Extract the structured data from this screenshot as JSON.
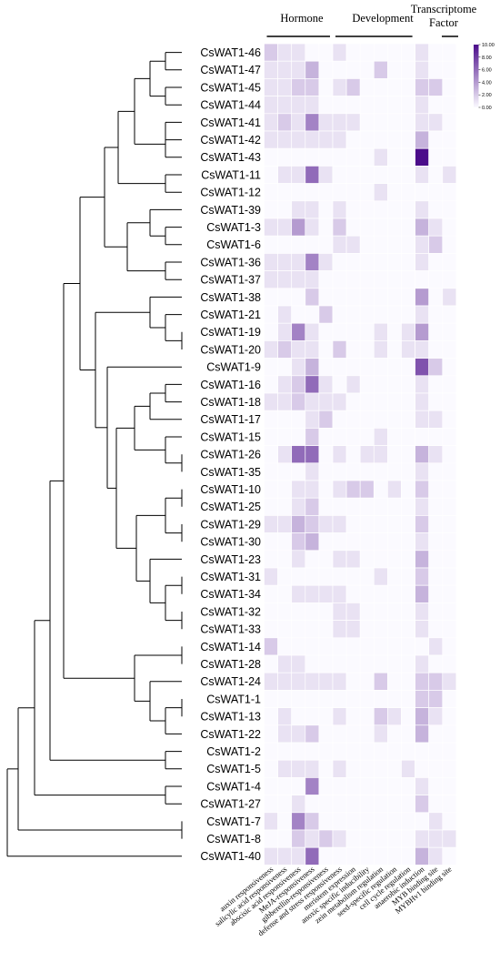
{
  "chart_data": {
    "type": "heatmap",
    "column_groups": [
      {
        "label": "Hormone",
        "columns": [
          1,
          2,
          3,
          4,
          5
        ]
      },
      {
        "label": "Development",
        "columns": [
          6,
          7,
          8,
          9,
          10,
          11
        ]
      },
      {
        "label_lines": [
          "Transcriptome",
          "Factor"
        ],
        "columns": [
          12,
          13
        ]
      }
    ],
    "columns": [
      "auxin responsiveness",
      "salicylic acid responsiveness",
      "abscisic acid responsiveness",
      "MeJA-responsiveness",
      "gibberellin-responsiveness",
      "defense and stress responsiveness",
      "meristem expression",
      "anoxic specific inducibility",
      "zein metabolism regulation",
      "seed-specific regulation",
      "cell cycle regulation",
      "anaerobic induction",
      "MYB binding site",
      "MYBHv1 binding site"
    ],
    "rows": [
      "CsWAT1-46",
      "CsWAT1-47",
      "CsWAT1-45",
      "CsWAT1-44",
      "CsWAT1-41",
      "CsWAT1-42",
      "CsWAT1-43",
      "CsWAT1-11",
      "CsWAT1-12",
      "CsWAT1-39",
      "CsWAT1-3",
      "CsWAT1-6",
      "CsWAT1-36",
      "CsWAT1-37",
      "CsWAT1-38",
      "CsWAT1-21",
      "CsWAT1-19",
      "CsWAT1-20",
      "CsWAT1-9",
      "CsWAT1-16",
      "CsWAT1-18",
      "CsWAT1-17",
      "CsWAT1-15",
      "CsWAT1-26",
      "CsWAT1-35",
      "CsWAT1-10",
      "CsWAT1-25",
      "CsWAT1-29",
      "CsWAT1-30",
      "CsWAT1-23",
      "CsWAT1-31",
      "CsWAT1-34",
      "CsWAT1-32",
      "CsWAT1-33",
      "CsWAT1-14",
      "CsWAT1-28",
      "CsWAT1-24",
      "CsWAT1-1",
      "CsWAT1-13",
      "CsWAT1-22",
      "CsWAT1-2",
      "CsWAT1-5",
      "CsWAT1-4",
      "CsWAT1-27",
      "CsWAT1-7",
      "CsWAT1-8",
      "CsWAT1-40"
    ],
    "values": [
      [
        2,
        1,
        1,
        0,
        0,
        1,
        0,
        0,
        0,
        0,
        0,
        1,
        0,
        0
      ],
      [
        1,
        1,
        1,
        3,
        0,
        0,
        0,
        0,
        2,
        0,
        0,
        1,
        0,
        0
      ],
      [
        1,
        1,
        2,
        2,
        0,
        1,
        2,
        0,
        0,
        0,
        0,
        2,
        2,
        0
      ],
      [
        1,
        1,
        1,
        1,
        0,
        0,
        0,
        0,
        0,
        0,
        0,
        1,
        0,
        0
      ],
      [
        1,
        2,
        1,
        5,
        1,
        1,
        1,
        0,
        0,
        0,
        0,
        1,
        1,
        0
      ],
      [
        1,
        1,
        1,
        1,
        1,
        1,
        0,
        0,
        0,
        0,
        0,
        3,
        0,
        0
      ],
      [
        0,
        0,
        0,
        0,
        0,
        0,
        0,
        0,
        1,
        0,
        0,
        10,
        0,
        0
      ],
      [
        0,
        1,
        1,
        6,
        1,
        0,
        0,
        0,
        0,
        0,
        0,
        1,
        0,
        1
      ],
      [
        0,
        0,
        0,
        0,
        0,
        0,
        0,
        0,
        1,
        0,
        0,
        0,
        0,
        0
      ],
      [
        0,
        0,
        1,
        1,
        0,
        1,
        0,
        0,
        0,
        0,
        0,
        1,
        0,
        0
      ],
      [
        1,
        1,
        4,
        1,
        0,
        2,
        0,
        0,
        0,
        0,
        0,
        3,
        1,
        0
      ],
      [
        0,
        0,
        0,
        0,
        0,
        1,
        1,
        0,
        0,
        0,
        0,
        1,
        2,
        0
      ],
      [
        1,
        1,
        1,
        5,
        1,
        0,
        0,
        0,
        0,
        0,
        0,
        1,
        0,
        0
      ],
      [
        1,
        1,
        1,
        1,
        0,
        0,
        0,
        0,
        0,
        0,
        0,
        0,
        0,
        0
      ],
      [
        0,
        0,
        0,
        2,
        0,
        0,
        0,
        0,
        0,
        0,
        0,
        4,
        0,
        1
      ],
      [
        0,
        1,
        0,
        0,
        2,
        0,
        0,
        0,
        0,
        0,
        0,
        1,
        0,
        0
      ],
      [
        0,
        1,
        5,
        1,
        0,
        0,
        0,
        0,
        1,
        0,
        1,
        4,
        0,
        0
      ],
      [
        1,
        2,
        1,
        1,
        0,
        2,
        0,
        0,
        1,
        0,
        1,
        1,
        0,
        0
      ],
      [
        0,
        0,
        1,
        3,
        0,
        0,
        0,
        0,
        0,
        0,
        0,
        7,
        2,
        0
      ],
      [
        0,
        1,
        2,
        6,
        1,
        0,
        1,
        0,
        0,
        0,
        0,
        1,
        0,
        0
      ],
      [
        1,
        1,
        2,
        1,
        1,
        1,
        0,
        0,
        0,
        0,
        0,
        1,
        0,
        0
      ],
      [
        0,
        0,
        0,
        1,
        2,
        0,
        0,
        0,
        0,
        0,
        0,
        1,
        1,
        0
      ],
      [
        0,
        0,
        0,
        2,
        0,
        0,
        0,
        0,
        1,
        0,
        0,
        0,
        0,
        0
      ],
      [
        0,
        1,
        6,
        6,
        0,
        1,
        0,
        1,
        1,
        0,
        0,
        3,
        1,
        0
      ],
      [
        0,
        0,
        0,
        1,
        0,
        0,
        0,
        0,
        0,
        0,
        0,
        1,
        0,
        0
      ],
      [
        0,
        0,
        1,
        1,
        0,
        1,
        2,
        2,
        0,
        1,
        0,
        2,
        0,
        0
      ],
      [
        0,
        0,
        1,
        2,
        0,
        0,
        0,
        0,
        0,
        0,
        0,
        1,
        0,
        0
      ],
      [
        1,
        1,
        3,
        2,
        1,
        1,
        0,
        0,
        0,
        0,
        0,
        2,
        0,
        0
      ],
      [
        0,
        0,
        2,
        3,
        0,
        0,
        0,
        0,
        0,
        0,
        0,
        1,
        0,
        0
      ],
      [
        0,
        0,
        1,
        0,
        0,
        1,
        1,
        0,
        0,
        0,
        0,
        3,
        0,
        0
      ],
      [
        1,
        0,
        0,
        0,
        0,
        0,
        0,
        0,
        1,
        0,
        0,
        2,
        0,
        0
      ],
      [
        0,
        0,
        1,
        1,
        1,
        1,
        0,
        0,
        0,
        0,
        0,
        3,
        0,
        0
      ],
      [
        0,
        0,
        0,
        0,
        0,
        1,
        1,
        0,
        0,
        0,
        0,
        1,
        0,
        0
      ],
      [
        0,
        0,
        0,
        0,
        0,
        1,
        1,
        0,
        0,
        0,
        0,
        1,
        0,
        0
      ],
      [
        2,
        0,
        0,
        0,
        0,
        0,
        0,
        0,
        0,
        0,
        0,
        0,
        1,
        0
      ],
      [
        0,
        1,
        1,
        0,
        0,
        0,
        0,
        0,
        0,
        0,
        0,
        1,
        0,
        0
      ],
      [
        1,
        1,
        1,
        1,
        1,
        1,
        0,
        0,
        2,
        0,
        0,
        2,
        2,
        1
      ],
      [
        0,
        0,
        0,
        0,
        0,
        0,
        0,
        0,
        0,
        0,
        0,
        2,
        2,
        0
      ],
      [
        0,
        1,
        0,
        0,
        0,
        1,
        0,
        0,
        2,
        1,
        0,
        3,
        1,
        0
      ],
      [
        0,
        1,
        1,
        2,
        0,
        0,
        0,
        0,
        1,
        0,
        0,
        3,
        0,
        0
      ],
      [
        0,
        0,
        0,
        0,
        0,
        0,
        0,
        0,
        0,
        0,
        0,
        0,
        0,
        0
      ],
      [
        0,
        1,
        1,
        1,
        0,
        1,
        0,
        0,
        0,
        0,
        1,
        0,
        0,
        0
      ],
      [
        0,
        0,
        0,
        5,
        0,
        0,
        0,
        0,
        0,
        0,
        0,
        1,
        0,
        0
      ],
      [
        0,
        0,
        1,
        0,
        0,
        0,
        0,
        0,
        0,
        0,
        0,
        2,
        0,
        0
      ],
      [
        1,
        0,
        5,
        2,
        0,
        0,
        0,
        0,
        0,
        0,
        0,
        0,
        1,
        0
      ],
      [
        0,
        0,
        2,
        1,
        2,
        1,
        0,
        0,
        0,
        0,
        0,
        1,
        1,
        1
      ],
      [
        1,
        1,
        1,
        6,
        0,
        0,
        0,
        0,
        0,
        0,
        0,
        3,
        1,
        0
      ]
    ],
    "colorscale": {
      "min": 0,
      "max": 10,
      "low_color": "#fbfaff",
      "high_color": "#4b0c8a"
    },
    "legend": {
      "ticks": [
        "10.00",
        "8.00",
        "6.00",
        "4.00",
        "2.00",
        "0.00"
      ],
      "placement": "top-right"
    },
    "dendrogram": true
  }
}
